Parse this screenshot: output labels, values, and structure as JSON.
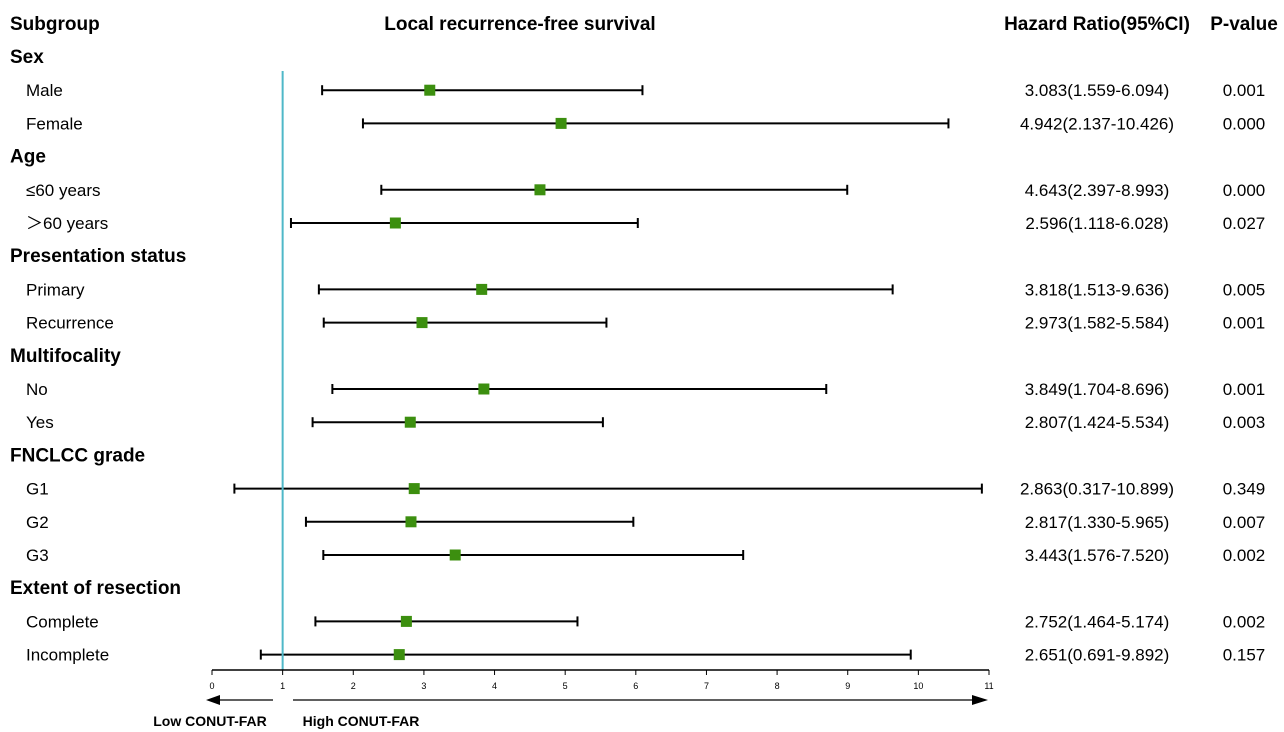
{
  "headers": {
    "subgroup": "Subgroup",
    "plot_title": "Local  recurrence-free survival",
    "hr": "Hazard Ratio(95%CI)",
    "p": "P-value"
  },
  "footer": {
    "left": "Low CONUT-FAR",
    "right": "High CONUT-FAR"
  },
  "colors": {
    "marker": "#3c8f0f",
    "reference_line": "#4fb8c8",
    "line": "#000000"
  },
  "chart_data": {
    "type": "forest",
    "title": "Local  recurrence-free survival",
    "reference_value": 1,
    "xlim": [
      0,
      11
    ],
    "xticks": [
      "0",
      "1",
      "2",
      "3",
      "4",
      "5",
      "6",
      "7",
      "8",
      "9",
      "10",
      "11"
    ],
    "rows": [
      {
        "kind": "group",
        "label": "Sex"
      },
      {
        "kind": "item",
        "label": "Male",
        "hr": 3.083,
        "lo": 1.559,
        "hi": 6.094,
        "hr_text": "3.083(1.559-6.094)",
        "p": "0.001"
      },
      {
        "kind": "item",
        "label": "Female",
        "hr": 4.942,
        "lo": 2.137,
        "hi": 10.426,
        "hr_text": "4.942(2.137-10.426)",
        "p": "0.000"
      },
      {
        "kind": "group",
        "label": "Age"
      },
      {
        "kind": "item",
        "label": "≤60 years",
        "hr": 4.643,
        "lo": 2.397,
        "hi": 8.993,
        "hr_text": "4.643(2.397-8.993)",
        "p": "0.000"
      },
      {
        "kind": "item",
        "label": "＞60 years",
        "hr": 2.596,
        "lo": 1.118,
        "hi": 6.028,
        "hr_text": "2.596(1.118-6.028)",
        "p": "0.027"
      },
      {
        "kind": "group",
        "label": "Presentation status"
      },
      {
        "kind": "item",
        "label": "Primary",
        "hr": 3.818,
        "lo": 1.513,
        "hi": 9.636,
        "hr_text": "3.818(1.513-9.636)",
        "p": "0.005"
      },
      {
        "kind": "item",
        "label": "Recurrence",
        "hr": 2.973,
        "lo": 1.582,
        "hi": 5.584,
        "hr_text": "2.973(1.582-5.584)",
        "p": "0.001"
      },
      {
        "kind": "group",
        "label": "Multifocality"
      },
      {
        "kind": "item",
        "label": "No",
        "hr": 3.849,
        "lo": 1.704,
        "hi": 8.696,
        "hr_text": "3.849(1.704-8.696)",
        "p": "0.001"
      },
      {
        "kind": "item",
        "label": "Yes",
        "hr": 2.807,
        "lo": 1.424,
        "hi": 5.534,
        "hr_text": "2.807(1.424-5.534)",
        "p": "0.003"
      },
      {
        "kind": "group",
        "label": "FNCLCC grade"
      },
      {
        "kind": "item",
        "label": "G1",
        "hr": 2.863,
        "lo": 0.317,
        "hi": 10.899,
        "hr_text": "2.863(0.317-10.899)",
        "p": "0.349"
      },
      {
        "kind": "item",
        "label": "G2",
        "hr": 2.817,
        "lo": 1.33,
        "hi": 5.965,
        "hr_text": "2.817(1.330-5.965)",
        "p": "0.007"
      },
      {
        "kind": "item",
        "label": "G3",
        "hr": 3.443,
        "lo": 1.576,
        "hi": 7.52,
        "hr_text": "3.443(1.576-7.520)",
        "p": "0.002"
      },
      {
        "kind": "group",
        "label": "Extent of resection"
      },
      {
        "kind": "item",
        "label": "Complete",
        "hr": 2.752,
        "lo": 1.464,
        "hi": 5.174,
        "hr_text": "2.752(1.464-5.174)",
        "p": "0.002"
      },
      {
        "kind": "item",
        "label": "Incomplete",
        "hr": 2.651,
        "lo": 0.691,
        "hi": 9.892,
        "hr_text": "2.651(0.691-9.892)",
        "p": "0.157"
      }
    ]
  }
}
